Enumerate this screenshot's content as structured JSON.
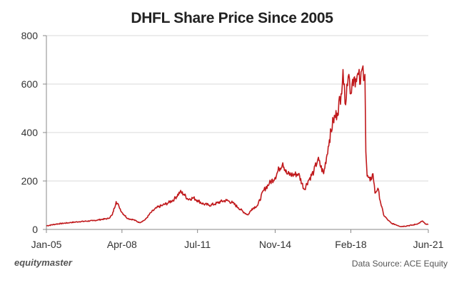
{
  "chart_data": {
    "type": "line",
    "title": "DHFL Share Price Since 2005",
    "xlabel": "",
    "ylabel": "",
    "x_tick_labels": [
      "Jan-05",
      "Apr-08",
      "Jul-11",
      "Nov-14",
      "Feb-18",
      "Jun-21"
    ],
    "x_tick_dates": [
      "2005-01-01",
      "2008-04-01",
      "2011-07-01",
      "2014-11-01",
      "2018-02-01",
      "2021-06-01"
    ],
    "y_ticks": [
      0,
      200,
      400,
      600,
      800
    ],
    "ylim": [
      0,
      800
    ],
    "xlim": [
      "2005-01-01",
      "2021-06-01"
    ],
    "grid": "horizontal",
    "series": [
      {
        "color": "#c0191c",
        "points": [
          [
            "2005-01-01",
            15
          ],
          [
            "2005-06-01",
            22
          ],
          [
            "2006-01-01",
            28
          ],
          [
            "2006-06-01",
            32
          ],
          [
            "2007-01-01",
            36
          ],
          [
            "2007-06-01",
            42
          ],
          [
            "2007-09-01",
            45
          ],
          [
            "2007-11-01",
            60
          ],
          [
            "2008-01-01",
            115
          ],
          [
            "2008-02-15",
            95
          ],
          [
            "2008-04-01",
            70
          ],
          [
            "2008-07-01",
            45
          ],
          [
            "2008-10-01",
            40
          ],
          [
            "2009-01-01",
            28
          ],
          [
            "2009-04-01",
            40
          ],
          [
            "2009-07-01",
            70
          ],
          [
            "2009-10-01",
            90
          ],
          [
            "2010-01-01",
            100
          ],
          [
            "2010-04-01",
            110
          ],
          [
            "2010-07-01",
            125
          ],
          [
            "2010-10-01",
            155
          ],
          [
            "2010-12-01",
            145
          ],
          [
            "2011-02-01",
            125
          ],
          [
            "2011-05-01",
            130
          ],
          [
            "2011-07-01",
            120
          ],
          [
            "2011-10-01",
            105
          ],
          [
            "2012-01-01",
            100
          ],
          [
            "2012-04-01",
            105
          ],
          [
            "2012-07-01",
            115
          ],
          [
            "2012-10-01",
            120
          ],
          [
            "2013-01-01",
            110
          ],
          [
            "2013-04-01",
            90
          ],
          [
            "2013-07-01",
            70
          ],
          [
            "2013-09-01",
            60
          ],
          [
            "2013-11-01",
            85
          ],
          [
            "2014-02-01",
            100
          ],
          [
            "2014-05-01",
            160
          ],
          [
            "2014-08-01",
            190
          ],
          [
            "2014-11-01",
            215
          ],
          [
            "2015-01-01",
            250
          ],
          [
            "2015-03-01",
            275
          ],
          [
            "2015-05-01",
            230
          ],
          [
            "2015-08-01",
            225
          ],
          [
            "2015-11-01",
            230
          ],
          [
            "2016-02-01",
            165
          ],
          [
            "2016-04-01",
            200
          ],
          [
            "2016-07-01",
            240
          ],
          [
            "2016-09-01",
            290
          ],
          [
            "2016-12-01",
            230
          ],
          [
            "2017-03-01",
            370
          ],
          [
            "2017-05-01",
            450
          ],
          [
            "2017-07-01",
            480
          ],
          [
            "2017-09-01",
            560
          ],
          [
            "2017-10-01",
            660
          ],
          [
            "2017-11-01",
            520
          ],
          [
            "2017-12-01",
            600
          ],
          [
            "2018-01-01",
            640
          ],
          [
            "2018-02-01",
            560
          ],
          [
            "2018-03-01",
            620
          ],
          [
            "2018-04-01",
            630
          ],
          [
            "2018-05-01",
            610
          ],
          [
            "2018-06-01",
            640
          ],
          [
            "2018-07-01",
            600
          ],
          [
            "2018-08-01",
            665
          ],
          [
            "2018-09-10",
            640
          ],
          [
            "2018-09-25",
            320
          ],
          [
            "2018-10-15",
            220
          ],
          [
            "2018-12-01",
            200
          ],
          [
            "2019-01-15",
            230
          ],
          [
            "2019-02-15",
            150
          ],
          [
            "2019-04-01",
            170
          ],
          [
            "2019-05-15",
            110
          ],
          [
            "2019-07-01",
            60
          ],
          [
            "2019-09-01",
            40
          ],
          [
            "2019-11-01",
            25
          ],
          [
            "2020-01-01",
            20
          ],
          [
            "2020-04-01",
            12
          ],
          [
            "2020-07-01",
            15
          ],
          [
            "2020-10-01",
            18
          ],
          [
            "2021-01-01",
            25
          ],
          [
            "2021-03-01",
            35
          ],
          [
            "2021-04-15",
            22
          ],
          [
            "2021-06-01",
            20
          ]
        ]
      }
    ]
  },
  "footer": {
    "brand": "equitymaster",
    "source": "Data Source: ACE Equity"
  }
}
